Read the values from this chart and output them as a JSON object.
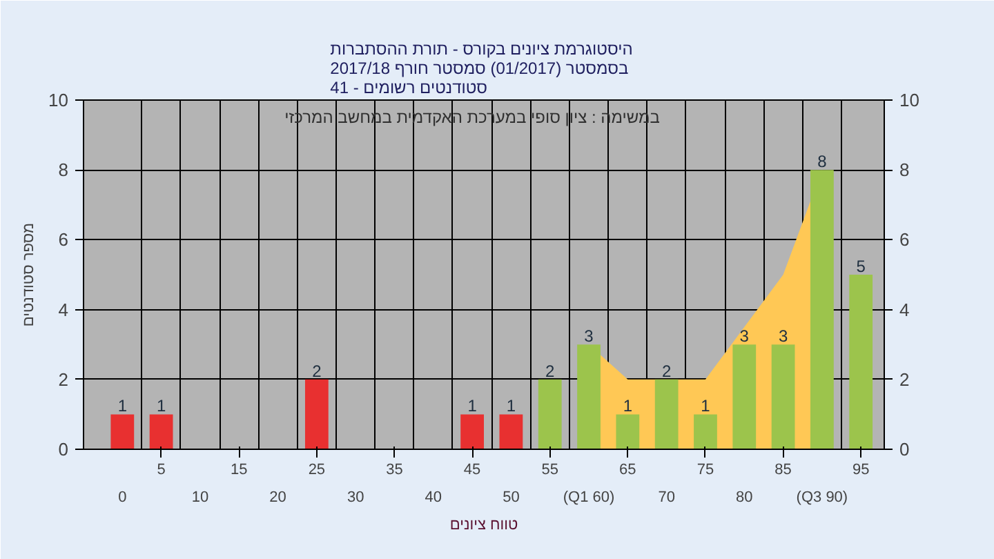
{
  "chart_data": {
    "type": "bar",
    "title": "היסטוגרמת ציונים בקורס - תורת ההסתברות\nבסמסטר  (01/2017)  סמסטר חורף 2017/18\nסטודנטים רשומים - 41",
    "xlabel": "טווח ציונים",
    "ylabel": "מספר סטודנטים",
    "annotations": [
      "במשימה : ציון סופי במערכת האקדמית במחשב המרכזי"
    ],
    "categories": [
      "0",
      "5",
      "10",
      "15",
      "20",
      "25",
      "30",
      "35",
      "40",
      "45",
      "50",
      "55",
      "(Q1 60)",
      "65",
      "70",
      "75",
      "80",
      "85",
      "(Q3 90)",
      "95"
    ],
    "series": [
      {
        "type": "area",
        "color": "#ffc855",
        "values": [
          null,
          null,
          null,
          null,
          null,
          null,
          null,
          null,
          null,
          null,
          null,
          null,
          3,
          2,
          null,
          2,
          null,
          5,
          8,
          null
        ]
      },
      {
        "colors": [
          "#e83030",
          "#e83030",
          "#e83030",
          "#e83030",
          "#e83030",
          "#e83030",
          "#e83030",
          "#e83030",
          "#e83030",
          "#e83030",
          "#e83030",
          "#9cc44c",
          "#9cc44c",
          "#9cc44c",
          "#9cc44c",
          "#9cc44c",
          "#9cc44c",
          "#9cc44c",
          "#9cc44c",
          "#9cc44c"
        ],
        "values": [
          1,
          1,
          null,
          null,
          null,
          2,
          null,
          null,
          null,
          1,
          1,
          2,
          3,
          1,
          2,
          1,
          3,
          3,
          8,
          5
        ],
        "value_labels": [
          "1",
          "1",
          null,
          null,
          null,
          "2",
          null,
          null,
          null,
          "1",
          "1",
          "2",
          "3",
          "1",
          "2",
          "1",
          "3",
          "3",
          "8",
          "5"
        ]
      }
    ],
    "ylim": [
      0,
      10
    ],
    "yticks": [
      0,
      2,
      4,
      6,
      8,
      10
    ],
    "y2lim": [
      0,
      10
    ],
    "y2ticks": [
      0,
      2,
      4,
      6,
      8,
      10
    ],
    "grid": true
  }
}
